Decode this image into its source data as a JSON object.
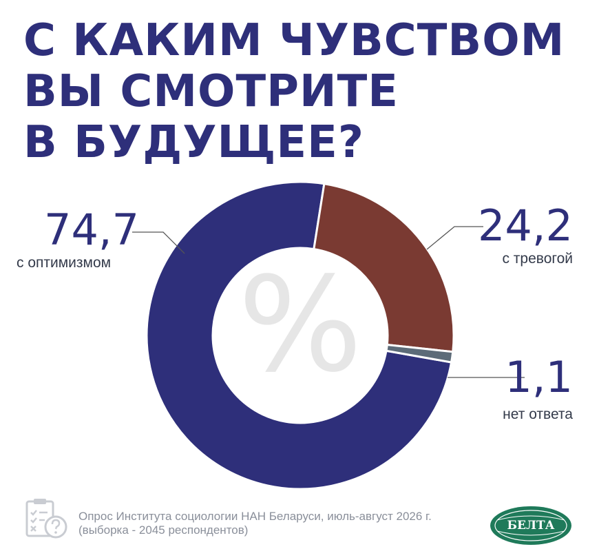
{
  "title": {
    "line1": "С КАКИМ ЧУВСТВОМ",
    "line2": "ВЫ СМОТРИТЕ",
    "line3": "В БУДУЩЕЕ?"
  },
  "chart_data": {
    "type": "pie",
    "title": "С КАКИМ ЧУВСТВОМ ВЫ СМОТРИТЕ В БУДУЩЕЕ?",
    "center_label": "%",
    "slices": [
      {
        "label": "с оптимизмом",
        "value": 74.7,
        "display": "74,7",
        "color": "#2e2f7a"
      },
      {
        "label": "с тревогой",
        "value": 24.2,
        "display": "24,2",
        "color": "#7a3a32"
      },
      {
        "label": "нет ответа",
        "value": 1.1,
        "display": "1,1",
        "color": "#5c6b78"
      }
    ]
  },
  "footer": {
    "line1": "Опрос Института социологии НАН Беларуси, июль-август 2026 г.",
    "line2": "(выборка - 2045 респондентов)",
    "icon": "survey-clipboard-icon"
  },
  "logo": {
    "text": "БЕЛТА",
    "color": "#1f7a5a"
  }
}
